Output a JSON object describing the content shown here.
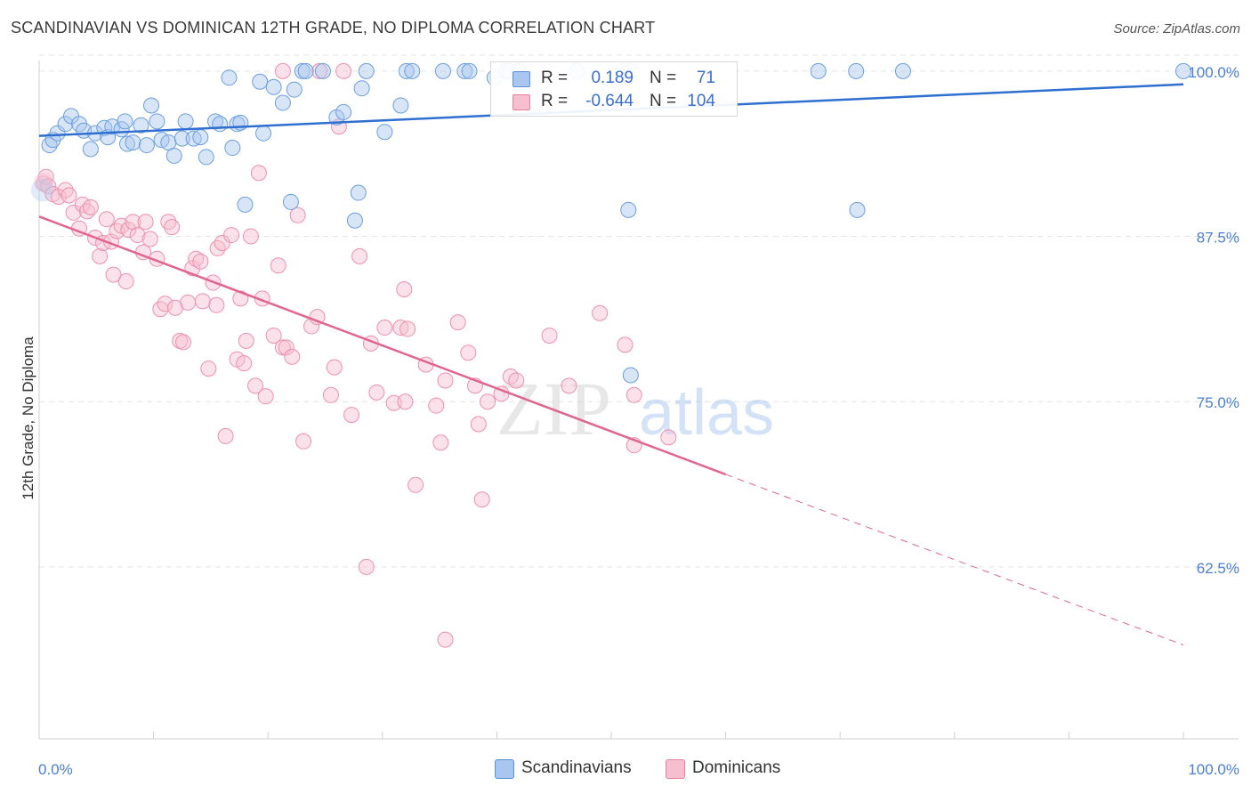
{
  "header": {
    "title": "SCANDINAVIAN VS DOMINICAN 12TH GRADE, NO DIPLOMA CORRELATION CHART",
    "source": "Source: ZipAtlas.com"
  },
  "watermark": {
    "zip": "ZIP",
    "atlas": "atlas"
  },
  "legend": {
    "rows": [
      {
        "r_label": "R =",
        "r_value": "0.189",
        "n_label": "N =",
        "n_value": "71",
        "color": "#a9c6ee",
        "border": "#5b8fd6"
      },
      {
        "r_label": "R =",
        "r_value": "-0.644",
        "n_label": "N =",
        "n_value": "104",
        "color": "#f6bfd0",
        "border": "#e87fa0"
      }
    ]
  },
  "bottom_legend": [
    {
      "label": "Scandinavians",
      "color": "#a9c6ee",
      "border": "#5b8fd6"
    },
    {
      "label": "Dominicans",
      "color": "#f6bfd0",
      "border": "#e87fa0"
    }
  ],
  "chart_data": {
    "type": "scatter",
    "title": "SCANDINAVIAN VS DOMINICAN 12TH GRADE, NO DIPLOMA CORRELATION CHART",
    "xlabel": "",
    "ylabel": "12th Grade, No Diploma",
    "xlim": [
      0,
      100
    ],
    "ylim": [
      49.5,
      100.8
    ],
    "x_tick_labels": [
      "0.0%",
      "100.0%"
    ],
    "y_ticks": [
      100.0,
      87.5,
      75.0,
      62.5
    ],
    "y_tick_labels": [
      "100.0%",
      "87.5%",
      "75.0%",
      "62.5%"
    ],
    "grid": true,
    "legend_position": "top-center",
    "colors": {
      "scandinavians": "#6a9ee0",
      "dominicans": "#ee8fae",
      "blue_line": "#2f6fcf",
      "pink_line": "#e06590",
      "axis_text": "#4a7fd4"
    },
    "series": [
      {
        "name": "Scandinavians",
        "trend": {
          "x": [
            0,
            100
          ],
          "y": [
            95.1,
            99.0
          ]
        },
        "points": [
          [
            0.9,
            94.4
          ],
          [
            1.2,
            94.8
          ],
          [
            1.6,
            95.3
          ],
          [
            2.3,
            96.0
          ],
          [
            2.8,
            96.6
          ],
          [
            3.5,
            96.0
          ],
          [
            3.9,
            95.5
          ],
          [
            4.5,
            94.1
          ],
          [
            4.9,
            95.3
          ],
          [
            5.7,
            95.7
          ],
          [
            6.0,
            95.0
          ],
          [
            6.4,
            95.8
          ],
          [
            7.2,
            95.6
          ],
          [
            7.5,
            96.2
          ],
          [
            7.7,
            94.5
          ],
          [
            8.2,
            94.6
          ],
          [
            8.9,
            95.9
          ],
          [
            9.4,
            94.4
          ],
          [
            9.8,
            97.4
          ],
          [
            10.3,
            96.2
          ],
          [
            10.7,
            94.8
          ],
          [
            11.3,
            94.6
          ],
          [
            11.8,
            93.6
          ],
          [
            12.5,
            94.9
          ],
          [
            12.8,
            96.2
          ],
          [
            13.5,
            94.9
          ],
          [
            14.1,
            95.0
          ],
          [
            14.6,
            93.5
          ],
          [
            15.4,
            96.2
          ],
          [
            15.8,
            96.0
          ],
          [
            16.9,
            94.2
          ],
          [
            17.3,
            96.0
          ],
          [
            17.6,
            96.1
          ],
          [
            16.6,
            99.5
          ],
          [
            18.0,
            89.9
          ],
          [
            19.3,
            99.2
          ],
          [
            19.6,
            95.3
          ],
          [
            20.5,
            98.8
          ],
          [
            21.3,
            97.6
          ],
          [
            22.3,
            98.6
          ],
          [
            22.0,
            90.1
          ],
          [
            23.0,
            100.0
          ],
          [
            23.3,
            100.0
          ],
          [
            24.8,
            100.0
          ],
          [
            26.0,
            96.5
          ],
          [
            26.6,
            96.9
          ],
          [
            27.6,
            88.7
          ],
          [
            28.2,
            98.7
          ],
          [
            27.9,
            90.8
          ],
          [
            28.6,
            100.0
          ],
          [
            30.2,
            95.4
          ],
          [
            31.6,
            97.4
          ],
          [
            32.1,
            100.0
          ],
          [
            32.6,
            100.0
          ],
          [
            35.3,
            100.0
          ],
          [
            37.2,
            100.0
          ],
          [
            37.6,
            100.0
          ],
          [
            39.8,
            99.5
          ],
          [
            40.8,
            100.0
          ],
          [
            41.1,
            100.0
          ],
          [
            41.9,
            100.0
          ],
          [
            47.0,
            100.0
          ],
          [
            51.0,
            100.0
          ],
          [
            51.7,
            100.0
          ],
          [
            51.5,
            89.5
          ],
          [
            51.7,
            77.0
          ],
          [
            68.1,
            100.0
          ],
          [
            71.4,
            100.0
          ],
          [
            71.5,
            89.5
          ],
          [
            75.5,
            100.0
          ],
          [
            100.0,
            100.0
          ]
        ]
      },
      {
        "name": "Dominicans",
        "trend": {
          "x": [
            0,
            60
          ],
          "y": [
            89.0,
            69.5
          ]
        },
        "trend_dashed": {
          "x": [
            60,
            100
          ],
          "y": [
            69.5,
            56.6
          ]
        },
        "points": [
          [
            0.4,
            91.5
          ],
          [
            0.6,
            92.0
          ],
          [
            0.8,
            91.3
          ],
          [
            1.2,
            90.7
          ],
          [
            1.7,
            90.5
          ],
          [
            2.3,
            91.0
          ],
          [
            2.6,
            90.6
          ],
          [
            3.0,
            89.3
          ],
          [
            3.5,
            88.1
          ],
          [
            3.8,
            89.9
          ],
          [
            4.2,
            89.4
          ],
          [
            4.5,
            89.7
          ],
          [
            4.9,
            87.4
          ],
          [
            5.3,
            86.0
          ],
          [
            5.6,
            87.0
          ],
          [
            5.9,
            88.8
          ],
          [
            6.3,
            87.1
          ],
          [
            6.5,
            84.6
          ],
          [
            6.8,
            87.9
          ],
          [
            7.2,
            88.3
          ],
          [
            7.6,
            84.1
          ],
          [
            7.8,
            88.0
          ],
          [
            8.2,
            88.6
          ],
          [
            8.6,
            87.6
          ],
          [
            9.1,
            86.3
          ],
          [
            9.3,
            88.6
          ],
          [
            9.7,
            87.3
          ],
          [
            10.3,
            85.8
          ],
          [
            10.6,
            82.0
          ],
          [
            11.0,
            82.4
          ],
          [
            11.3,
            88.6
          ],
          [
            11.6,
            88.2
          ],
          [
            11.9,
            82.1
          ],
          [
            12.3,
            79.6
          ],
          [
            12.6,
            79.5
          ],
          [
            13.0,
            82.5
          ],
          [
            13.4,
            85.1
          ],
          [
            13.7,
            85.8
          ],
          [
            14.1,
            85.6
          ],
          [
            14.3,
            82.6
          ],
          [
            14.8,
            77.5
          ],
          [
            15.2,
            84.0
          ],
          [
            15.5,
            82.3
          ],
          [
            15.6,
            86.6
          ],
          [
            16.0,
            87.0
          ],
          [
            16.3,
            72.4
          ],
          [
            16.8,
            87.6
          ],
          [
            17.3,
            78.2
          ],
          [
            17.6,
            82.8
          ],
          [
            17.9,
            77.9
          ],
          [
            18.1,
            79.6
          ],
          [
            18.5,
            87.5
          ],
          [
            18.9,
            76.2
          ],
          [
            19.2,
            92.3
          ],
          [
            19.5,
            82.8
          ],
          [
            19.8,
            75.4
          ],
          [
            20.5,
            80.0
          ],
          [
            20.9,
            85.3
          ],
          [
            21.3,
            79.1
          ],
          [
            21.6,
            79.1
          ],
          [
            22.1,
            78.4
          ],
          [
            22.6,
            89.1
          ],
          [
            23.1,
            72.0
          ],
          [
            23.8,
            80.7
          ],
          [
            24.3,
            81.4
          ],
          [
            25.5,
            75.5
          ],
          [
            25.8,
            77.6
          ],
          [
            26.6,
            100.0
          ],
          [
            26.2,
            95.8
          ],
          [
            27.3,
            74.0
          ],
          [
            28.0,
            86.0
          ],
          [
            28.6,
            62.5
          ],
          [
            29.0,
            79.4
          ],
          [
            29.5,
            75.7
          ],
          [
            30.2,
            80.6
          ],
          [
            31.0,
            74.9
          ],
          [
            31.6,
            80.6
          ],
          [
            31.9,
            83.5
          ],
          [
            32.2,
            80.5
          ],
          [
            32.9,
            68.7
          ],
          [
            33.8,
            77.8
          ],
          [
            34.7,
            74.7
          ],
          [
            35.1,
            71.9
          ],
          [
            35.5,
            76.6
          ],
          [
            36.6,
            81.0
          ],
          [
            37.5,
            78.7
          ],
          [
            38.1,
            76.2
          ],
          [
            38.4,
            73.3
          ],
          [
            38.7,
            67.6
          ],
          [
            39.2,
            75.0
          ],
          [
            40.4,
            75.6
          ],
          [
            41.2,
            76.9
          ],
          [
            41.7,
            76.6
          ],
          [
            44.6,
            80.0
          ],
          [
            46.3,
            76.2
          ],
          [
            49.0,
            81.7
          ],
          [
            51.2,
            79.3
          ],
          [
            52.0,
            75.5
          ],
          [
            52.0,
            71.7
          ],
          [
            55.0,
            72.3
          ],
          [
            24.5,
            100.0
          ],
          [
            21.3,
            100.0
          ],
          [
            35.5,
            57.0
          ],
          [
            32.0,
            75.0
          ]
        ]
      }
    ]
  }
}
